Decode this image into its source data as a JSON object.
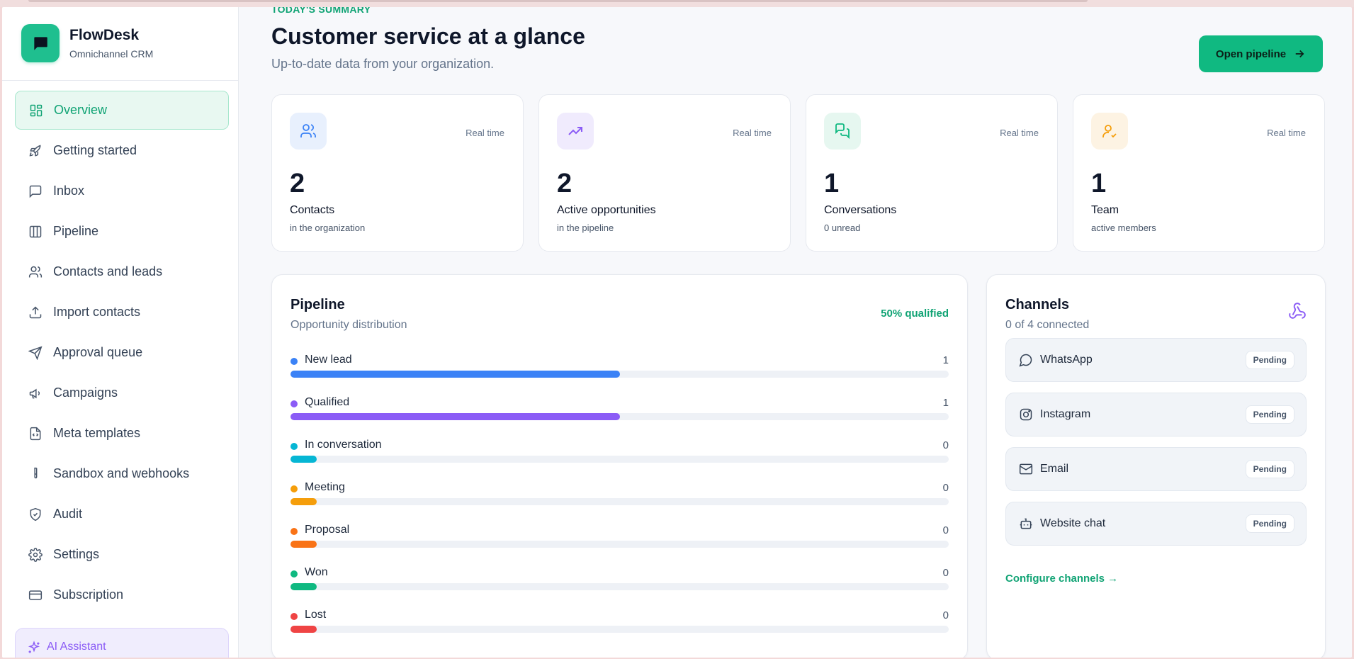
{
  "brand": {
    "name": "FlowDesk",
    "subtitle": "Omnichannel CRM",
    "logo_icon": "chat-bubble-icon"
  },
  "nav": [
    {
      "label": "Overview",
      "icon": "dashboard-icon",
      "active": true
    },
    {
      "label": "Getting started",
      "icon": "rocket-icon"
    },
    {
      "label": "Inbox",
      "icon": "message-square-icon"
    },
    {
      "label": "Pipeline",
      "icon": "columns-icon"
    },
    {
      "label": "Contacts and leads",
      "icon": "users-icon"
    },
    {
      "label": "Import contacts",
      "icon": "upload-icon"
    },
    {
      "label": "Approval queue",
      "icon": "send-icon"
    },
    {
      "label": "Campaigns",
      "icon": "megaphone-icon"
    },
    {
      "label": "Meta templates",
      "icon": "file-code-icon"
    },
    {
      "label": "Sandbox and webhooks",
      "icon": "test-tube-icon"
    },
    {
      "label": "Audit",
      "icon": "shield-check-icon"
    },
    {
      "label": "Settings",
      "icon": "gear-icon"
    },
    {
      "label": "Subscription",
      "icon": "credit-card-icon"
    }
  ],
  "ai_assistant": {
    "label": "AI Assistant",
    "icon": "sparkles-icon"
  },
  "header": {
    "eyebrow": "TODAY'S SUMMARY",
    "title": "Customer service at a glance",
    "subtitle": "Up-to-date data from your organization.",
    "open_pipeline_label": "Open pipeline"
  },
  "stats": [
    {
      "value": "2",
      "label": "Contacts",
      "sub": "in the organization",
      "tag": "Real time",
      "icon": "users-icon",
      "color": "#3b82f6",
      "bg": "#e8f0fd"
    },
    {
      "value": "2",
      "label": "Active opportunities",
      "sub": "in the pipeline",
      "tag": "Real time",
      "icon": "trending-up-icon",
      "color": "#8b5cf6",
      "bg": "#f0ebfd"
    },
    {
      "value": "1",
      "label": "Conversations",
      "sub": "0 unread",
      "tag": "Real time",
      "icon": "messages-icon",
      "color": "#10b981",
      "bg": "#e6f7f0"
    },
    {
      "value": "1",
      "label": "Team",
      "sub": "active members",
      "tag": "Real time",
      "icon": "user-check-icon",
      "color": "#f59e0b",
      "bg": "#fdf3e3"
    }
  ],
  "pipeline": {
    "title": "Pipeline",
    "subtitle": "Opportunity distribution",
    "qualified_text": "50% qualified",
    "stages": [
      {
        "name": "New lead",
        "count": "1",
        "fraction": 0.5,
        "color": "#3b82f6"
      },
      {
        "name": "Qualified",
        "count": "1",
        "fraction": 0.5,
        "color": "#8b5cf6"
      },
      {
        "name": "In conversation",
        "count": "0",
        "fraction": 0.04,
        "color": "#06b6d4"
      },
      {
        "name": "Meeting",
        "count": "0",
        "fraction": 0.04,
        "color": "#f59e0b"
      },
      {
        "name": "Proposal",
        "count": "0",
        "fraction": 0.04,
        "color": "#f97316"
      },
      {
        "name": "Won",
        "count": "0",
        "fraction": 0.04,
        "color": "#10b981"
      },
      {
        "name": "Lost",
        "count": "0",
        "fraction": 0.04,
        "color": "#ef4444"
      }
    ]
  },
  "channels": {
    "title": "Channels",
    "subtitle": "0 of 4 connected",
    "header_icon": "webhook-icon",
    "items": [
      {
        "name": "WhatsApp",
        "status": "Pending",
        "icon": "whatsapp-icon"
      },
      {
        "name": "Instagram",
        "status": "Pending",
        "icon": "instagram-icon"
      },
      {
        "name": "Email",
        "status": "Pending",
        "icon": "mail-icon"
      },
      {
        "name": "Website chat",
        "status": "Pending",
        "icon": "bot-icon"
      }
    ],
    "configure_label": "Configure channels →"
  }
}
